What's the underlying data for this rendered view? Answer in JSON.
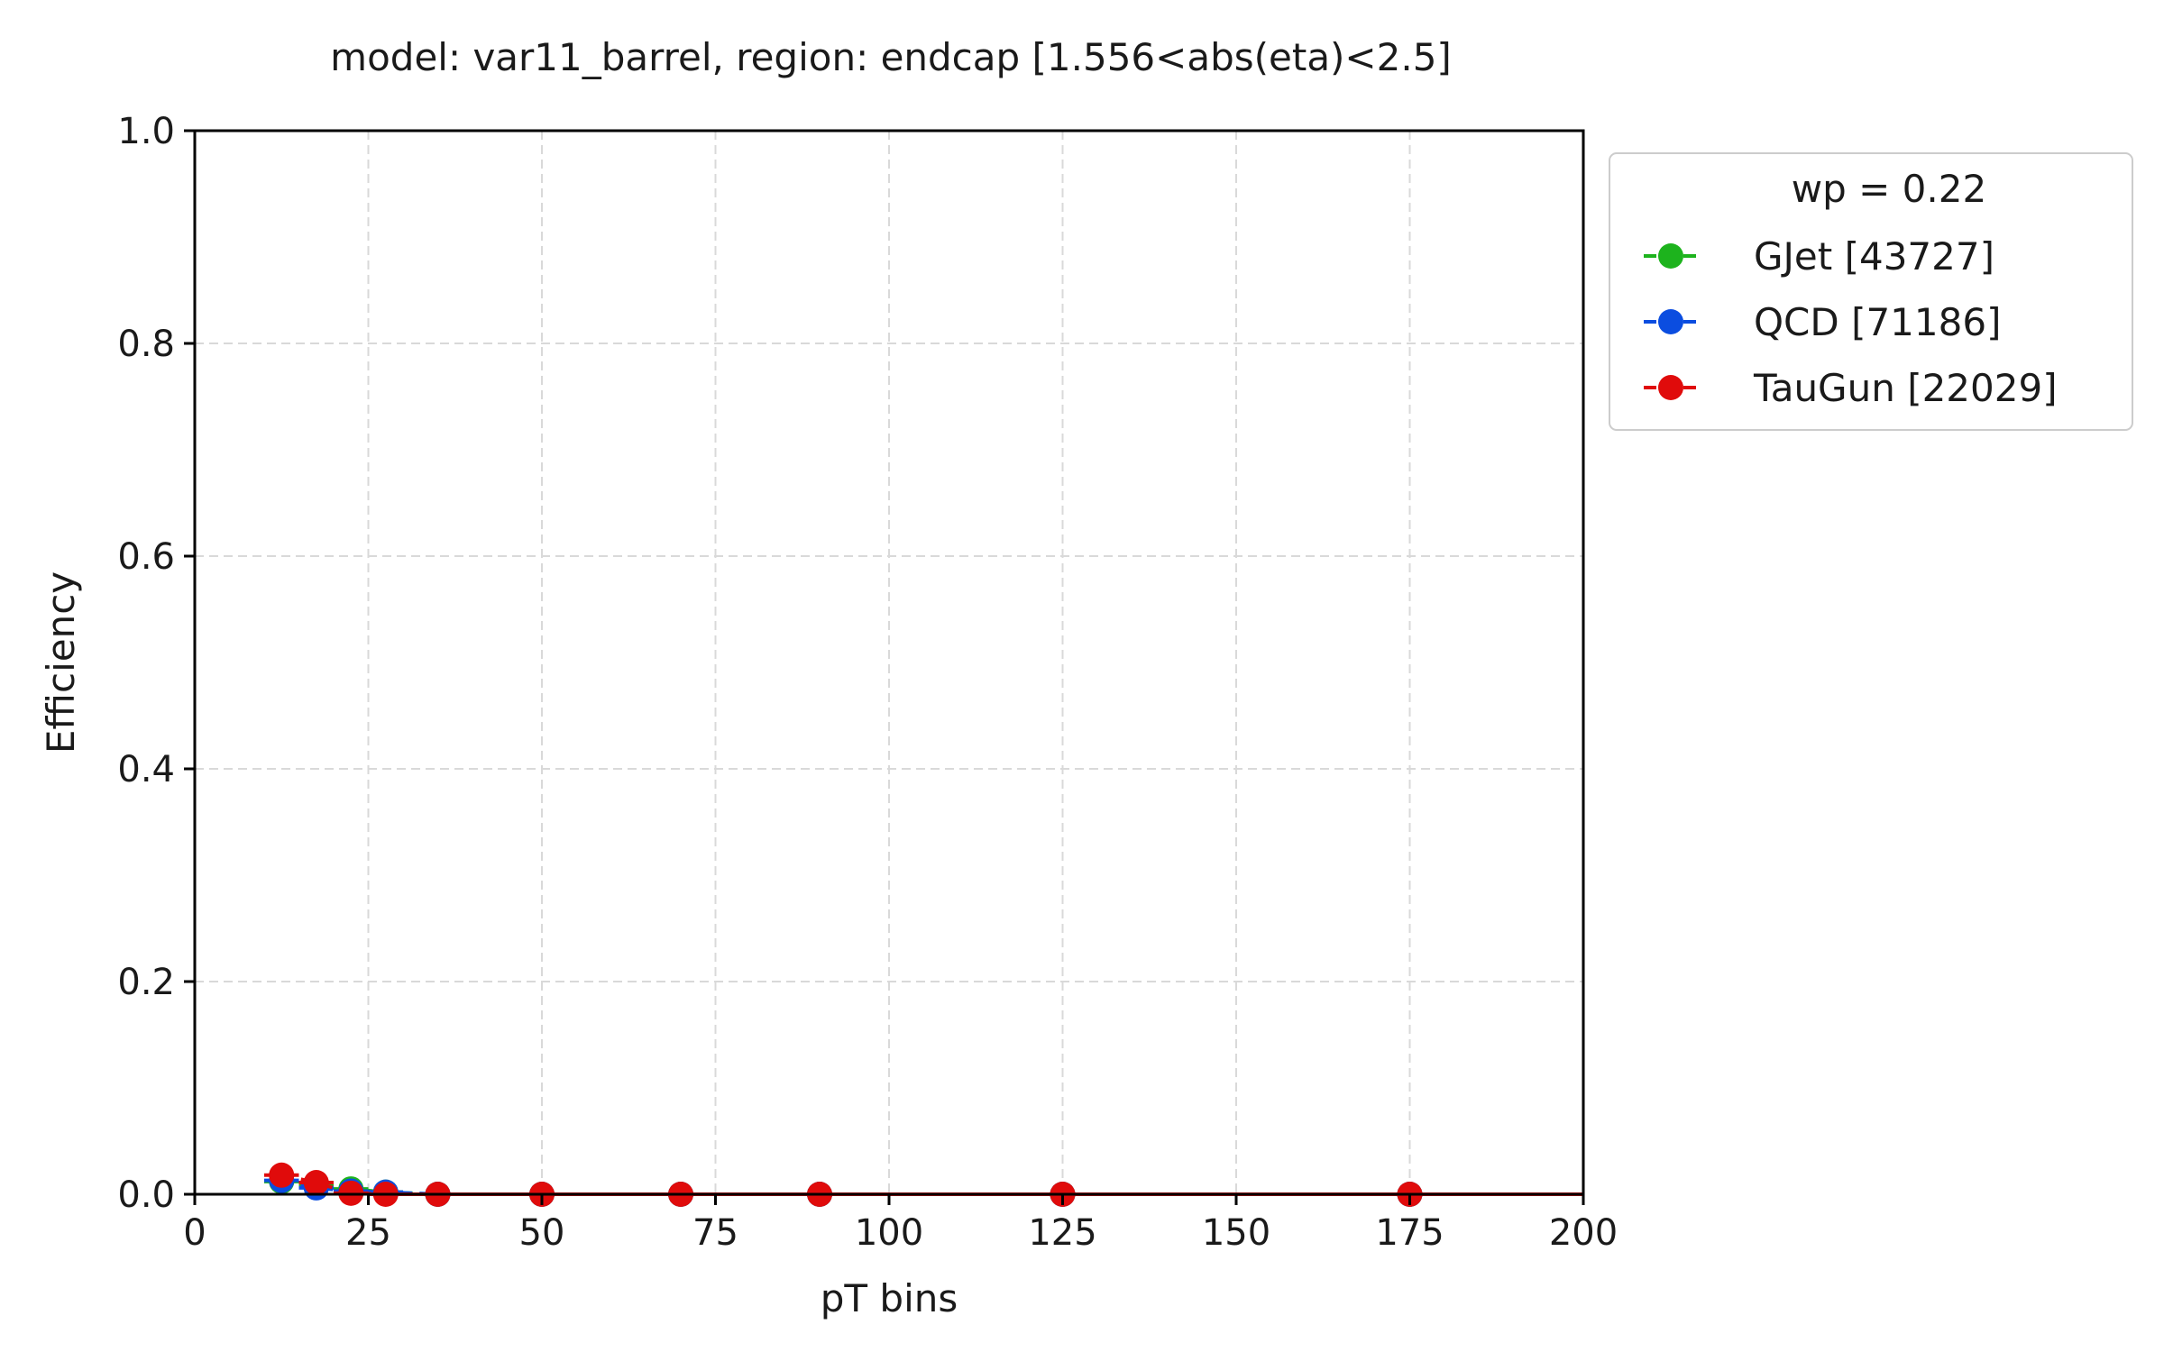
{
  "chart_data": {
    "type": "line",
    "title": "model: var11_barrel, region: endcap [1.556<abs(eta)<2.5]",
    "xlabel": "pT bins",
    "ylabel": "Efficiency",
    "xlim": [
      0,
      200
    ],
    "ylim": [
      0,
      1.0
    ],
    "x_ticks": [
      "0",
      "25",
      "50",
      "75",
      "100",
      "125",
      "150",
      "175",
      "200"
    ],
    "y_ticks": [
      "0.0",
      "0.2",
      "0.4",
      "0.6",
      "0.8",
      "1.0"
    ],
    "grid": true,
    "legend": {
      "placement": "outside-top-right",
      "title": "wp = 0.22"
    },
    "x_errors": [
      2.5,
      2.5,
      2.5,
      2.5,
      5,
      10,
      10,
      10,
      25,
      25
    ],
    "series": [
      {
        "name": "GJet [43727]",
        "color": "#1db31d",
        "x": [
          12.5,
          17.5,
          22.5,
          27.5,
          35,
          50,
          70,
          90,
          125,
          175
        ],
        "y": [
          0.012,
          0.008,
          0.005,
          0.002,
          0.0,
          0.0,
          0.0,
          0.0,
          0.0,
          0.0
        ]
      },
      {
        "name": "QCD [71186]",
        "color": "#0b4de0",
        "x": [
          12.5,
          17.5,
          22.5,
          27.5,
          35,
          50,
          70,
          90,
          125,
          175
        ],
        "y": [
          0.013,
          0.006,
          0.003,
          0.002,
          0.0,
          0.0,
          0.0,
          0.0,
          0.0,
          0.0
        ]
      },
      {
        "name": "TauGun [22029]",
        "color": "#e00b0b",
        "x": [
          12.5,
          17.5,
          22.5,
          27.5,
          35,
          50,
          70,
          90,
          125,
          175
        ],
        "y": [
          0.018,
          0.011,
          0.001,
          0.0,
          0.0,
          0.0,
          0.0,
          0.0,
          0.0,
          0.0
        ]
      }
    ]
  }
}
